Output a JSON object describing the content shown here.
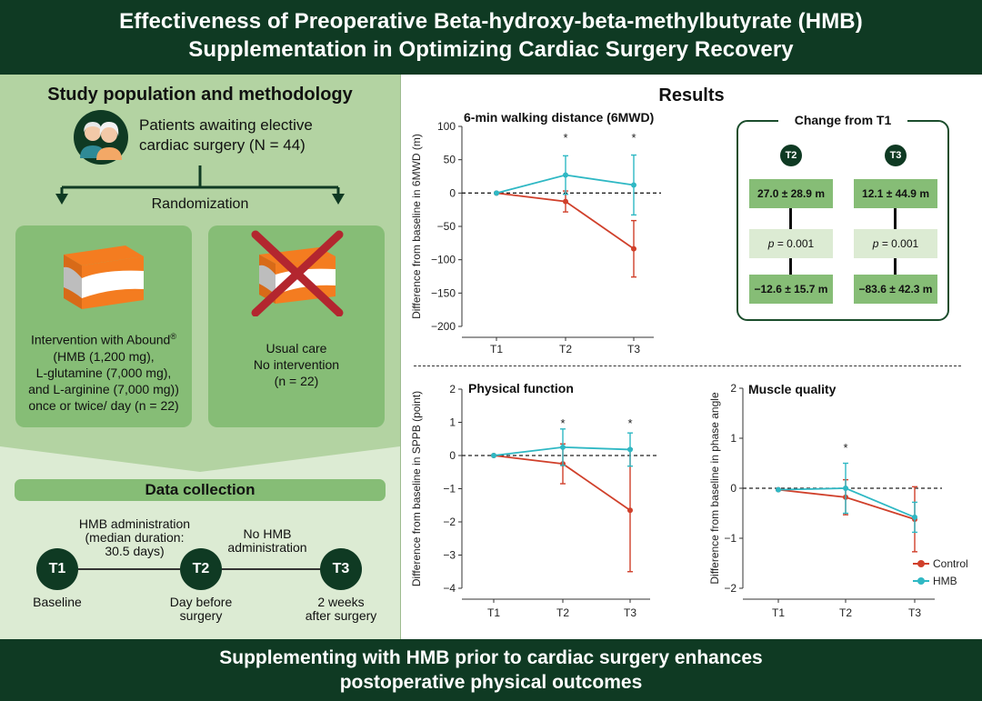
{
  "header": {
    "line1": "Effectiveness of Preoperative Beta-hydroxy-beta-methylbutyrate (HMB)",
    "line2": "Supplementation in Optimizing Cardiac Surgery Recovery"
  },
  "left": {
    "title": "Study population and methodology",
    "patients_line1": "Patients awaiting elective",
    "patients_line2": "cardiac surgery (N = 44)",
    "randomization": "Randomization",
    "intervention": {
      "line1": "Intervention with Abound",
      "reg": "®",
      "line2": "(HMB (1,200 mg),",
      "line3": "L-glutamine (7,000 mg),",
      "line4": "and L-arginine (7,000 mg))",
      "line5": "once or twice/ day (n = 22)"
    },
    "usual_care": {
      "line1": "Usual care",
      "line2": "No intervention",
      "line3": "(n = 22)"
    }
  },
  "data_collection": {
    "title": "Data collection",
    "hmb_admin_line1": "HMB administration",
    "hmb_admin_line2": "(median duration:",
    "hmb_admin_line3": "30.5 days)",
    "no_hmb_line1": "No HMB",
    "no_hmb_line2": "administration",
    "t1": "T1",
    "t2": "T2",
    "t3": "T3",
    "t1_label": "Baseline",
    "t2_label_line1": "Day before",
    "t2_label_line2": "surgery",
    "t3_label_line1": "2 weeks",
    "t3_label_line2": "after surgery"
  },
  "results": {
    "title": "Results",
    "change": {
      "title": "Change from T1",
      "t2": "T2",
      "t3": "T3",
      "t2_hmb": "27.0 ± 28.9 m",
      "t3_hmb": "12.1 ± 44.9 m",
      "p_label": "p",
      "t2_p": " = 0.001",
      "t3_p": " = 0.001",
      "t2_control": "−12.6 ± 15.7 m",
      "t3_control": "−83.6 ± 42.3 m"
    }
  },
  "colors": {
    "control": "#d0402b",
    "hmb": "#2fb8c4",
    "dark_green": "#0f3a23"
  },
  "footer": {
    "line1": "Supplementing with HMB prior to cardiac surgery enhances",
    "line2": "postoperative physical outcomes"
  },
  "chart_data": [
    {
      "id": "mwd",
      "type": "line",
      "title": "6-min walking distance (6MWD)",
      "ylabel": "Difference from baseline in 6MWD (m)",
      "xlabel": "",
      "categories": [
        "T1",
        "T2",
        "T3"
      ],
      "ylim": [
        -200,
        100
      ],
      "yticks": [
        100,
        50,
        0,
        -50,
        -100,
        -150,
        -200
      ],
      "ytick_labels": [
        "100",
        "50",
        "0",
        "−50",
        "−100",
        "−150",
        "−200"
      ],
      "significance": [
        "",
        "*",
        "*"
      ],
      "series": [
        {
          "name": "Control",
          "values": [
            0,
            -12.6,
            -83.6
          ],
          "err": [
            0,
            15.7,
            42.3
          ]
        },
        {
          "name": "HMB",
          "values": [
            0,
            27.0,
            12.1
          ],
          "err": [
            0,
            28.9,
            44.9
          ]
        }
      ]
    },
    {
      "id": "pf",
      "type": "line",
      "title": "Physical function",
      "ylabel": "Difference from baseline in SPPB (point)",
      "xlabel": "",
      "categories": [
        "T1",
        "T2",
        "T3"
      ],
      "ylim": [
        -4,
        2
      ],
      "yticks": [
        2,
        1,
        0,
        -1,
        -2,
        -3,
        -4
      ],
      "ytick_labels": [
        "2",
        "1",
        "0",
        "−1",
        "−2",
        "−3",
        "−4"
      ],
      "significance": [
        "",
        "*",
        "*"
      ],
      "series": [
        {
          "name": "Control",
          "values": [
            0,
            -0.25,
            -1.65
          ],
          "err": [
            0,
            0.6,
            1.85
          ]
        },
        {
          "name": "HMB",
          "values": [
            0,
            0.25,
            0.18
          ],
          "err": [
            0,
            0.55,
            0.5
          ]
        }
      ]
    },
    {
      "id": "mq",
      "type": "line",
      "title": "Muscle quality",
      "ylabel": "Difference from baseline in phase angle",
      "xlabel": "",
      "categories": [
        "T1",
        "T2",
        "T3"
      ],
      "ylim": [
        -2,
        2
      ],
      "yticks": [
        2,
        1,
        0,
        -1,
        -2
      ],
      "ytick_labels": [
        "2",
        "1",
        "0",
        "−1",
        "−2"
      ],
      "significance": [
        "",
        "*",
        ""
      ],
      "legend": [
        "Control",
        "HMB"
      ],
      "series": [
        {
          "name": "Control",
          "values": [
            -0.03,
            -0.18,
            -0.62
          ],
          "err": [
            0,
            0.35,
            0.65
          ]
        },
        {
          "name": "HMB",
          "values": [
            -0.03,
            0.0,
            -0.58
          ],
          "err": [
            0,
            0.5,
            0.3
          ]
        }
      ]
    }
  ]
}
